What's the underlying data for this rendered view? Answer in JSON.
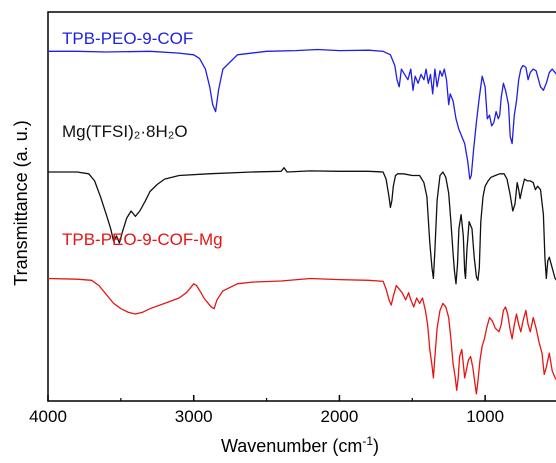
{
  "chart_data": {
    "type": "line",
    "title": "",
    "xlabel": "Wavenumber (cm",
    "xlabel_sup": "-1",
    "xlabel_suffix": ")",
    "ylabel": "Transmittance (a. u.)",
    "xlim": [
      4000,
      500
    ],
    "x_reversed": true,
    "xticks": [
      "4000",
      "3000",
      "2000",
      "1000"
    ],
    "xtick_values": [
      4000,
      3000,
      2000,
      1000
    ],
    "yticks": [],
    "grid": false,
    "legend": "none",
    "series": [
      {
        "name": "TPB-PEO-9-COF",
        "color": "#1f1fe6",
        "points": [
          [
            4000,
            9.4
          ],
          [
            3800,
            9.4
          ],
          [
            3600,
            9.38
          ],
          [
            3300,
            9.4
          ],
          [
            3100,
            9.35
          ],
          [
            3000,
            9.3
          ],
          [
            2960,
            9.2
          ],
          [
            2920,
            8.9
          ],
          [
            2890,
            8.4
          ],
          [
            2870,
            7.9
          ],
          [
            2850,
            7.7
          ],
          [
            2830,
            8.3
          ],
          [
            2800,
            8.9
          ],
          [
            2700,
            9.3
          ],
          [
            2500,
            9.4
          ],
          [
            2300,
            9.42
          ],
          [
            2150,
            9.45
          ],
          [
            2000,
            9.42
          ],
          [
            1800,
            9.43
          ],
          [
            1700,
            9.4
          ],
          [
            1650,
            9.3
          ],
          [
            1620,
            9.0
          ],
          [
            1605,
            8.6
          ],
          [
            1590,
            8.4
          ],
          [
            1575,
            8.9
          ],
          [
            1560,
            8.8
          ],
          [
            1530,
            8.6
          ],
          [
            1510,
            8.9
          ],
          [
            1495,
            8.3
          ],
          [
            1480,
            8.7
          ],
          [
            1460,
            8.5
          ],
          [
            1440,
            8.75
          ],
          [
            1420,
            8.6
          ],
          [
            1405,
            8.9
          ],
          [
            1390,
            8.5
          ],
          [
            1375,
            8.75
          ],
          [
            1360,
            8.2
          ],
          [
            1345,
            8.9
          ],
          [
            1330,
            8.4
          ],
          [
            1310,
            8.85
          ],
          [
            1295,
            8.7
          ],
          [
            1280,
            8.9
          ],
          [
            1265,
            8.6
          ],
          [
            1250,
            7.9
          ],
          [
            1240,
            8.2
          ],
          [
            1220,
            8.0
          ],
          [
            1200,
            7.5
          ],
          [
            1180,
            7.2
          ],
          [
            1160,
            7.0
          ],
          [
            1140,
            6.8
          ],
          [
            1120,
            6.3
          ],
          [
            1105,
            5.8
          ],
          [
            1095,
            5.9
          ],
          [
            1080,
            6.6
          ],
          [
            1060,
            7.4
          ],
          [
            1040,
            8.1
          ],
          [
            1020,
            8.7
          ],
          [
            1000,
            8.4
          ],
          [
            985,
            7.5
          ],
          [
            970,
            7.6
          ],
          [
            955,
            7.3
          ],
          [
            940,
            7.4
          ],
          [
            925,
            7.7
          ],
          [
            910,
            7.5
          ],
          [
            900,
            7.6
          ],
          [
            890,
            8.1
          ],
          [
            875,
            8.5
          ],
          [
            860,
            8.3
          ],
          [
            840,
            7.9
          ],
          [
            828,
            7.0
          ],
          [
            815,
            6.8
          ],
          [
            800,
            7.6
          ],
          [
            785,
            8.0
          ],
          [
            770,
            8.6
          ],
          [
            755,
            8.9
          ],
          [
            740,
            9.0
          ],
          [
            720,
            8.95
          ],
          [
            705,
            8.6
          ],
          [
            690,
            8.8
          ],
          [
            670,
            8.9
          ],
          [
            650,
            8.85
          ],
          [
            620,
            8.4
          ],
          [
            600,
            8.3
          ],
          [
            580,
            8.5
          ],
          [
            560,
            8.8
          ],
          [
            540,
            8.9
          ],
          [
            520,
            8.8
          ],
          [
            500,
            8.7
          ]
        ]
      },
      {
        "name": "Mg(TFSI)₂·8H₂O",
        "color": "#111111",
        "points": [
          [
            4000,
            6.0
          ],
          [
            3800,
            6.0
          ],
          [
            3720,
            5.95
          ],
          [
            3680,
            5.75
          ],
          [
            3640,
            5.3
          ],
          [
            3600,
            4.8
          ],
          [
            3570,
            4.4
          ],
          [
            3550,
            4.05
          ],
          [
            3530,
            4.2
          ],
          [
            3510,
            4.0
          ],
          [
            3490,
            4.3
          ],
          [
            3460,
            4.7
          ],
          [
            3430,
            4.9
          ],
          [
            3400,
            4.75
          ],
          [
            3370,
            4.9
          ],
          [
            3330,
            5.2
          ],
          [
            3300,
            5.45
          ],
          [
            3250,
            5.65
          ],
          [
            3200,
            5.8
          ],
          [
            3100,
            5.9
          ],
          [
            2900,
            5.95
          ],
          [
            2600,
            6.0
          ],
          [
            2400,
            6.02
          ],
          [
            2380,
            6.12
          ],
          [
            2360,
            6.0
          ],
          [
            2200,
            6.03
          ],
          [
            2000,
            6.02
          ],
          [
            1800,
            6.02
          ],
          [
            1700,
            6.0
          ],
          [
            1680,
            5.8
          ],
          [
            1660,
            5.3
          ],
          [
            1650,
            5.0
          ],
          [
            1640,
            5.2
          ],
          [
            1630,
            5.6
          ],
          [
            1615,
            5.9
          ],
          [
            1600,
            5.95
          ],
          [
            1560,
            5.95
          ],
          [
            1500,
            5.9
          ],
          [
            1450,
            5.9
          ],
          [
            1420,
            5.7
          ],
          [
            1400,
            5.3
          ],
          [
            1380,
            4.0
          ],
          [
            1365,
            3.3
          ],
          [
            1355,
            3.0
          ],
          [
            1345,
            3.8
          ],
          [
            1330,
            5.2
          ],
          [
            1310,
            5.9
          ],
          [
            1290,
            6.0
          ],
          [
            1270,
            5.85
          ],
          [
            1250,
            5.4
          ],
          [
            1235,
            4.6
          ],
          [
            1220,
            3.7
          ],
          [
            1210,
            3.2
          ],
          [
            1200,
            2.85
          ],
          [
            1190,
            3.4
          ],
          [
            1180,
            4.4
          ],
          [
            1165,
            4.8
          ],
          [
            1150,
            4.2
          ],
          [
            1140,
            3.2
          ],
          [
            1135,
            3.0
          ],
          [
            1125,
            3.8
          ],
          [
            1110,
            4.6
          ],
          [
            1090,
            4.4
          ],
          [
            1075,
            3.6
          ],
          [
            1060,
            3.05
          ],
          [
            1050,
            2.95
          ],
          [
            1040,
            3.3
          ],
          [
            1030,
            4.6
          ],
          [
            1015,
            5.3
          ],
          [
            1000,
            5.6
          ],
          [
            980,
            5.75
          ],
          [
            960,
            5.85
          ],
          [
            930,
            5.9
          ],
          [
            900,
            5.95
          ],
          [
            870,
            5.95
          ],
          [
            850,
            5.8
          ],
          [
            830,
            5.4
          ],
          [
            810,
            4.9
          ],
          [
            795,
            5.1
          ],
          [
            780,
            5.7
          ],
          [
            770,
            5.5
          ],
          [
            760,
            5.25
          ],
          [
            745,
            5.55
          ],
          [
            730,
            5.8
          ],
          [
            710,
            5.75
          ],
          [
            690,
            5.75
          ],
          [
            670,
            5.7
          ],
          [
            655,
            5.5
          ],
          [
            640,
            5.6
          ],
          [
            620,
            5.5
          ],
          [
            600,
            4.8
          ],
          [
            590,
            3.6
          ],
          [
            580,
            3.0
          ],
          [
            570,
            3.5
          ],
          [
            560,
            3.6
          ],
          [
            540,
            3.3
          ],
          [
            520,
            3.0
          ],
          [
            500,
            2.9
          ]
        ]
      },
      {
        "name": "TPB-PEO-9-COF-Mg",
        "color": "#e61515",
        "points": [
          [
            4000,
            3.0
          ],
          [
            3800,
            2.98
          ],
          [
            3700,
            2.95
          ],
          [
            3650,
            2.8
          ],
          [
            3600,
            2.55
          ],
          [
            3550,
            2.3
          ],
          [
            3500,
            2.15
          ],
          [
            3450,
            2.05
          ],
          [
            3400,
            2.0
          ],
          [
            3350,
            2.05
          ],
          [
            3300,
            2.15
          ],
          [
            3200,
            2.3
          ],
          [
            3100,
            2.45
          ],
          [
            3050,
            2.6
          ],
          [
            3020,
            2.75
          ],
          [
            3000,
            2.85
          ],
          [
            2980,
            2.8
          ],
          [
            2950,
            2.6
          ],
          [
            2930,
            2.45
          ],
          [
            2910,
            2.35
          ],
          [
            2880,
            2.2
          ],
          [
            2860,
            2.15
          ],
          [
            2840,
            2.4
          ],
          [
            2800,
            2.65
          ],
          [
            2700,
            2.85
          ],
          [
            2600,
            2.9
          ],
          [
            2400,
            2.93
          ],
          [
            2200,
            3.0
          ],
          [
            2000,
            2.97
          ],
          [
            1800,
            2.95
          ],
          [
            1700,
            2.92
          ],
          [
            1680,
            2.7
          ],
          [
            1660,
            2.4
          ],
          [
            1645,
            2.25
          ],
          [
            1630,
            2.5
          ],
          [
            1610,
            2.8
          ],
          [
            1590,
            2.7
          ],
          [
            1570,
            2.6
          ],
          [
            1545,
            2.4
          ],
          [
            1525,
            2.6
          ],
          [
            1510,
            2.4
          ],
          [
            1490,
            2.2
          ],
          [
            1470,
            2.45
          ],
          [
            1450,
            2.3
          ],
          [
            1430,
            2.45
          ],
          [
            1410,
            2.1
          ],
          [
            1395,
            1.7
          ],
          [
            1380,
            1.0
          ],
          [
            1365,
            0.55
          ],
          [
            1355,
            0.2
          ],
          [
            1345,
            0.8
          ],
          [
            1330,
            1.6
          ],
          [
            1310,
            2.1
          ],
          [
            1290,
            2.3
          ],
          [
            1270,
            2.2
          ],
          [
            1250,
            1.9
          ],
          [
            1235,
            1.3
          ],
          [
            1220,
            0.6
          ],
          [
            1205,
            0.2
          ],
          [
            1195,
            -0.15
          ],
          [
            1185,
            0.2
          ],
          [
            1175,
            0.8
          ],
          [
            1160,
            1.0
          ],
          [
            1150,
            0.6
          ],
          [
            1140,
            0.2
          ],
          [
            1130,
            0.4
          ],
          [
            1115,
            0.7
          ],
          [
            1100,
            0.8
          ],
          [
            1085,
            0.5
          ],
          [
            1070,
            0.05
          ],
          [
            1060,
            -0.25
          ],
          [
            1050,
            0.1
          ],
          [
            1035,
            0.7
          ],
          [
            1020,
            1.1
          ],
          [
            1005,
            1.3
          ],
          [
            990,
            1.6
          ],
          [
            970,
            1.9
          ],
          [
            950,
            1.8
          ],
          [
            930,
            1.6
          ],
          [
            905,
            1.5
          ],
          [
            890,
            1.7
          ],
          [
            875,
            2.1
          ],
          [
            860,
            2.2
          ],
          [
            845,
            2.0
          ],
          [
            830,
            1.6
          ],
          [
            815,
            1.3
          ],
          [
            800,
            1.7
          ],
          [
            785,
            2.0
          ],
          [
            770,
            1.7
          ],
          [
            755,
            1.5
          ],
          [
            740,
            1.8
          ],
          [
            720,
            2.1
          ],
          [
            705,
            1.7
          ],
          [
            690,
            1.5
          ],
          [
            670,
            1.9
          ],
          [
            650,
            1.6
          ],
          [
            630,
            1.2
          ],
          [
            610,
            0.9
          ],
          [
            595,
            0.3
          ],
          [
            580,
            0.5
          ],
          [
            560,
            0.9
          ],
          [
            540,
            0.4
          ],
          [
            520,
            0.2
          ],
          [
            500,
            0.1
          ]
        ]
      }
    ]
  }
}
